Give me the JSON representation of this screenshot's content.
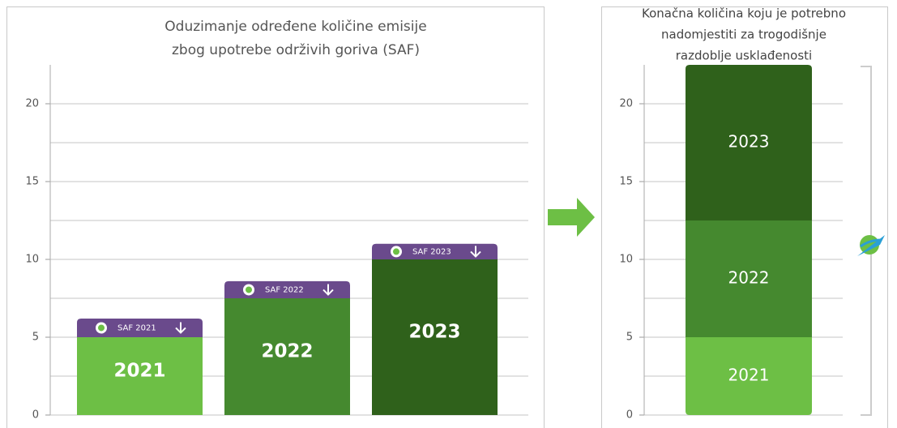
{
  "chart_data": [
    {
      "type": "bar",
      "title": [
        "Oduzimanje određene količine emisije",
        "zbog upotrebe održivih goriva (SAF)"
      ],
      "categories": [
        "2021",
        "2022",
        "2023"
      ],
      "series": [
        {
          "values": [
            5,
            7.5,
            10
          ],
          "colors": [
            "#6dbf45",
            "#45892f",
            "#2f611b"
          ]
        },
        {
          "values": [
            1.2,
            1.1,
            1.0
          ],
          "color": "#6a4a8c",
          "labels": [
            "SAF 2021",
            "SAF 2022",
            "SAF 2023"
          ]
        }
      ],
      "ylim": [
        0,
        22.5
      ],
      "yticks": [
        0,
        5,
        10,
        15,
        20
      ],
      "minor_yticks": [
        2.5,
        7.5,
        12.5,
        17.5
      ],
      "grid": true
    },
    {
      "type": "stack",
      "title": [
        "Konačna količina koju je potrebno",
        "nadomjestiti za trogodišnje",
        "razdoblje usklađenosti"
      ],
      "categories": [
        "2021",
        "2022",
        "2023"
      ],
      "values": [
        5,
        7.5,
        10
      ],
      "colors": [
        "#6dbf45",
        "#45892f",
        "#2f611b"
      ],
      "ylim": [
        0,
        22.5
      ],
      "yticks": [
        0,
        5,
        10,
        15,
        20
      ],
      "minor_yticks": [
        2.5,
        7.5,
        12.5,
        17.5
      ],
      "grid": true
    }
  ]
}
